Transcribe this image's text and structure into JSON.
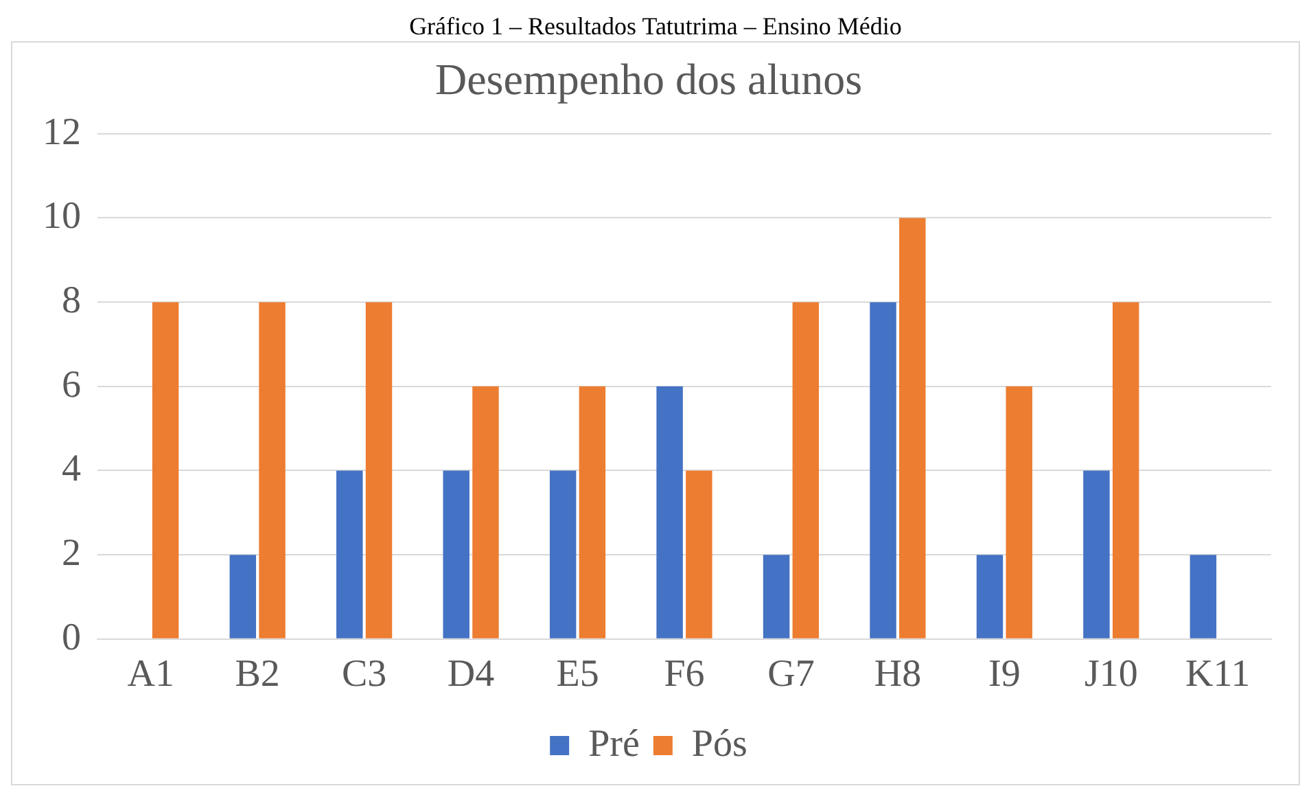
{
  "chart_data": {
    "type": "bar",
    "title": "Gráfico 1 – Resultados Tatutrima – Ensino Médio",
    "subtitle": "Desempenho dos alunos",
    "categories": [
      "A1",
      "B2",
      "C3",
      "D4",
      "E5",
      "F6",
      "G7",
      "H8",
      "I9",
      "J10",
      "K11"
    ],
    "series": [
      {
        "name": "Pré",
        "color": "#4472c4",
        "values": [
          0,
          2,
          4,
          4,
          4,
          6,
          2,
          8,
          2,
          4,
          2
        ]
      },
      {
        "name": "Pós",
        "color": "#ed7d31",
        "values": [
          8,
          8,
          8,
          6,
          6,
          4,
          8,
          10,
          6,
          8,
          0
        ]
      }
    ],
    "ylim": [
      0,
      12
    ],
    "yticks": [
      0,
      2,
      4,
      6,
      8,
      10,
      12
    ],
    "grid": "y",
    "legend": "bottom"
  }
}
